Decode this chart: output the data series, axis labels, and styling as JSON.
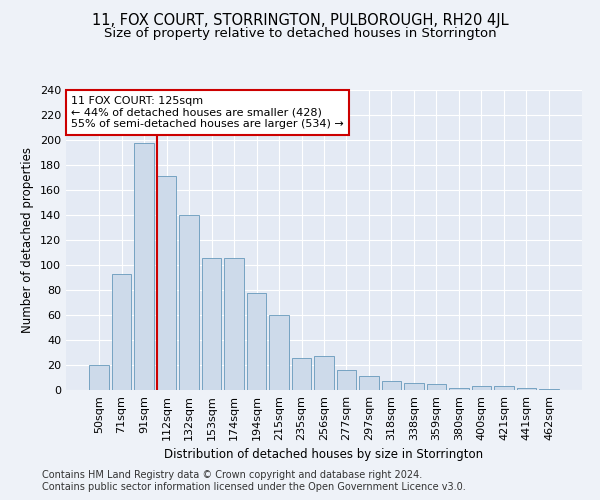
{
  "title": "11, FOX COURT, STORRINGTON, PULBOROUGH, RH20 4JL",
  "subtitle": "Size of property relative to detached houses in Storrington",
  "xlabel": "Distribution of detached houses by size in Storrington",
  "ylabel": "Number of detached properties",
  "categories": [
    "50sqm",
    "71sqm",
    "91sqm",
    "112sqm",
    "132sqm",
    "153sqm",
    "174sqm",
    "194sqm",
    "215sqm",
    "235sqm",
    "256sqm",
    "277sqm",
    "297sqm",
    "318sqm",
    "338sqm",
    "359sqm",
    "380sqm",
    "400sqm",
    "421sqm",
    "441sqm",
    "462sqm"
  ],
  "values": [
    20,
    93,
    198,
    171,
    140,
    106,
    106,
    78,
    60,
    26,
    27,
    16,
    11,
    7,
    6,
    5,
    2,
    3,
    3,
    2,
    1
  ],
  "bar_color": "#cddaea",
  "bar_edge_color": "#6699bb",
  "vline_color": "#cc0000",
  "vline_x_index": 3,
  "annotation_text": "11 FOX COURT: 125sqm\n← 44% of detached houses are smaller (428)\n55% of semi-detached houses are larger (534) →",
  "annotation_box_facecolor": "#ffffff",
  "annotation_box_edgecolor": "#cc0000",
  "ylim": [
    0,
    240
  ],
  "yticks": [
    0,
    20,
    40,
    60,
    80,
    100,
    120,
    140,
    160,
    180,
    200,
    220,
    240
  ],
  "footnote1": "Contains HM Land Registry data © Crown copyright and database right 2024.",
  "footnote2": "Contains public sector information licensed under the Open Government Licence v3.0.",
  "background_color": "#eef2f8",
  "plot_bg_color": "#e4eaf4",
  "grid_color": "#ffffff",
  "title_fontsize": 10.5,
  "subtitle_fontsize": 9.5,
  "axis_label_fontsize": 8.5,
  "tick_fontsize": 8,
  "annotation_fontsize": 8,
  "footnote_fontsize": 7
}
